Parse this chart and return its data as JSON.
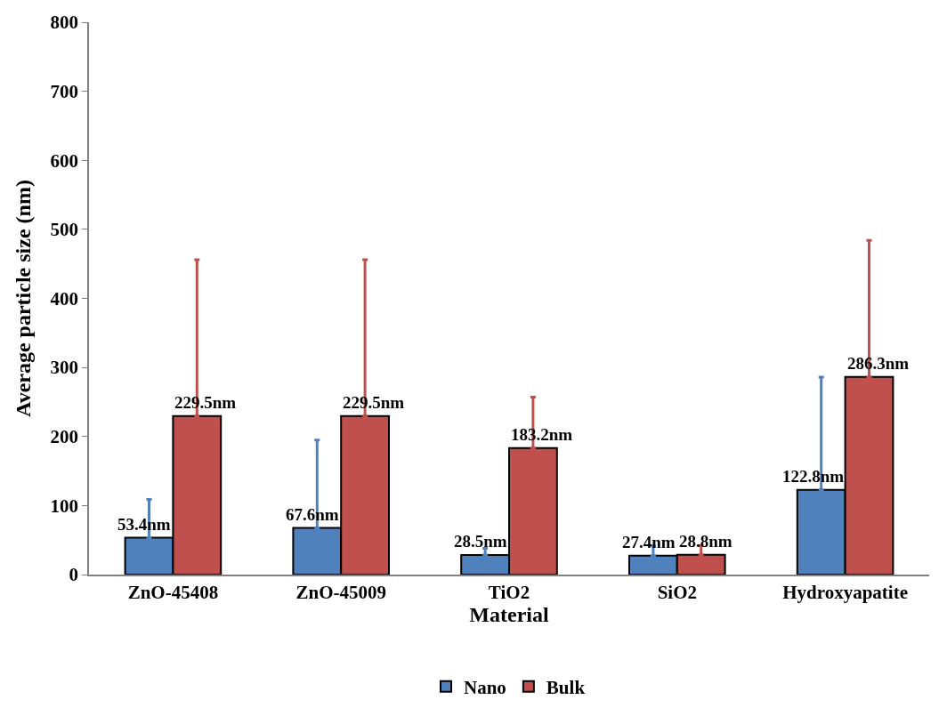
{
  "chart_data": {
    "type": "bar",
    "xlabel": "Material",
    "ylabel": "Average particle size (nm)",
    "categories": [
      "ZnO-45408",
      "ZnO-45009",
      "TiO2",
      "SiO2",
      "Hydroxyapatite"
    ],
    "series": [
      {
        "name": "Nano",
        "color": "#4f81bd",
        "values": [
          53.4,
          67.6,
          28.5,
          27.4,
          122.8
        ],
        "value_labels": [
          "53.4nm",
          "67.6nm",
          "28.5nm",
          "27.4nm",
          "122.8nm"
        ],
        "errors": [
          [
            53.4,
            109
          ],
          [
            67.6,
            195
          ],
          [
            28.5,
            38
          ],
          [
            27.4,
            42
          ],
          [
            122.8,
            286
          ]
        ]
      },
      {
        "name": "Bulk",
        "color": "#c0504d",
        "values": [
          229.5,
          229.5,
          183.2,
          28.8,
          286.3
        ],
        "value_labels": [
          "229.5nm",
          "229.5nm",
          "183.2nm",
          "28.8nm",
          "286.3nm"
        ],
        "errors": [
          [
            229.5,
            456
          ],
          [
            229.5,
            456
          ],
          [
            183.2,
            257
          ],
          [
            28.8,
            42
          ],
          [
            286.3,
            484
          ]
        ]
      }
    ],
    "ylim": [
      0,
      800
    ],
    "yticks": [
      0,
      100,
      200,
      300,
      400,
      500,
      600,
      700,
      800
    ],
    "legend": "bottom"
  }
}
